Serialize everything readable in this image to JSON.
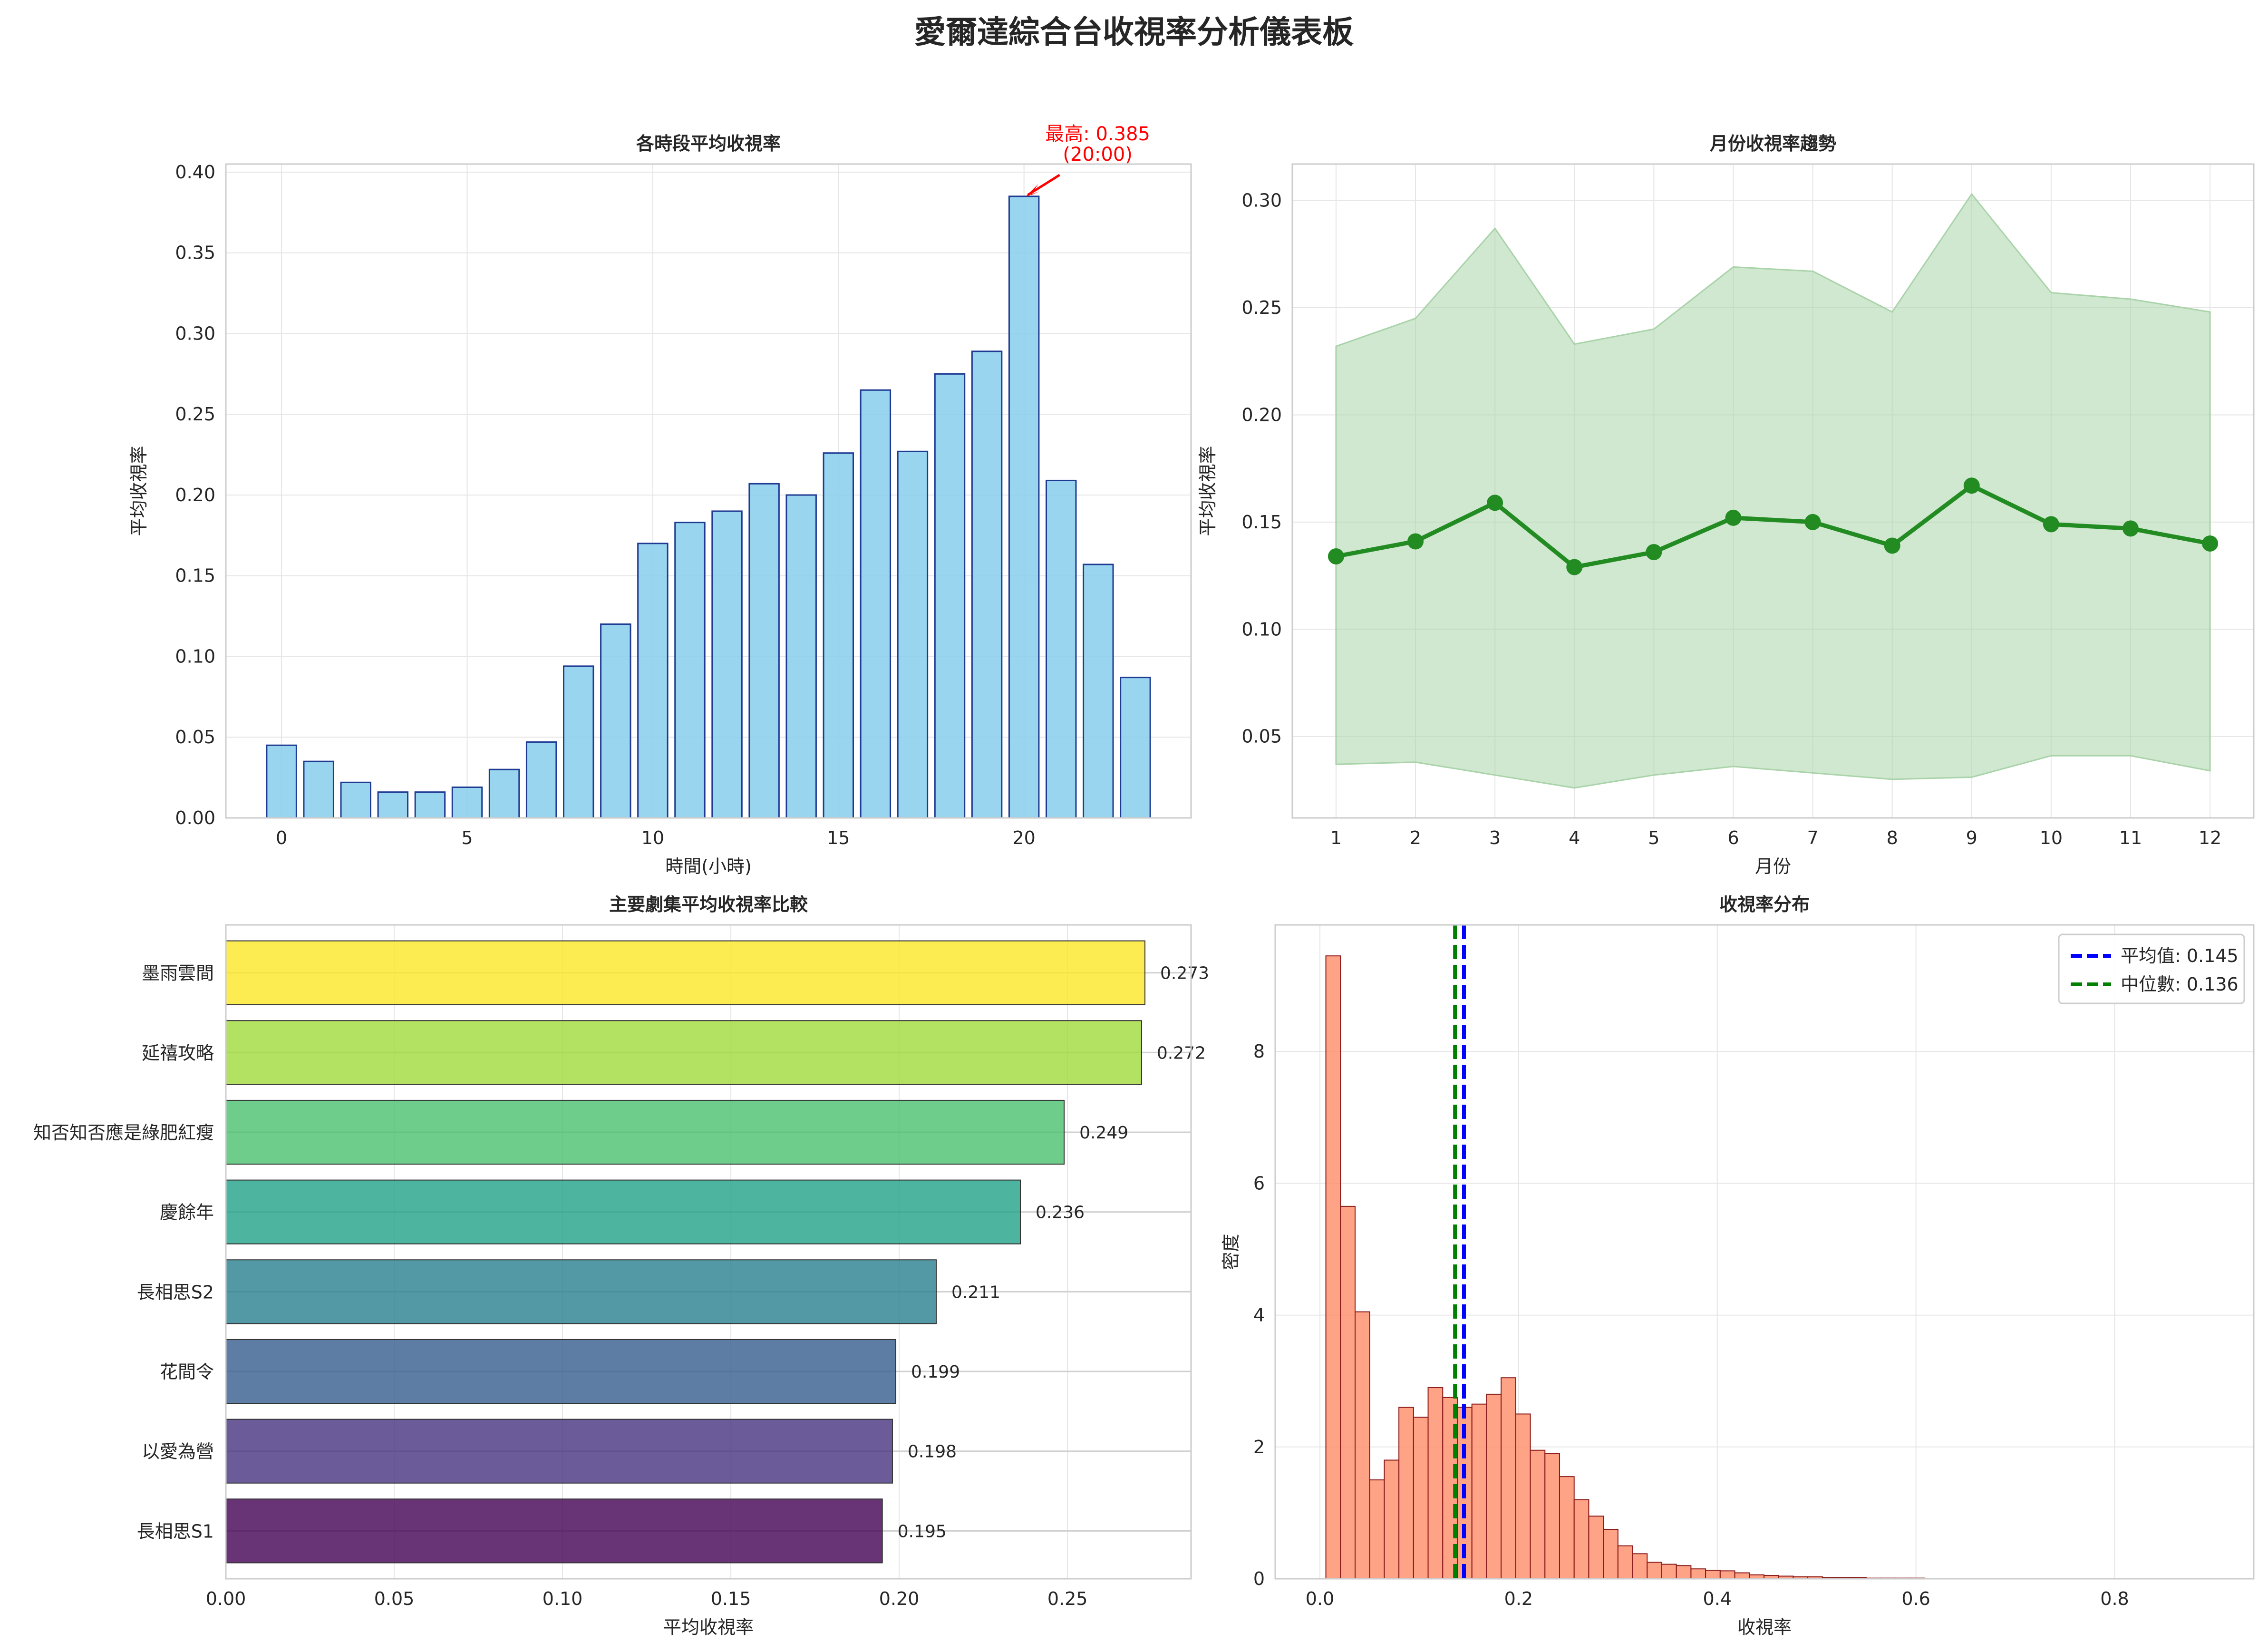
{
  "suptitle": "愛爾達綜合台收視率分析儀表板",
  "colors": {
    "bar_fill": "#87ceeb",
    "bar_edge": "#1f3a93",
    "line": "#228b22",
    "band": "#a9d3a9",
    "hist_fill": "#ff8c69",
    "hist_edge": "#8b1a1a",
    "mean_line": "#0000ff",
    "median_line": "#008000",
    "annotation": "#ff0000",
    "grid": "#e6e6e6",
    "frame": "#cccccc",
    "viridis": [
      "#fde725",
      "#a0da39",
      "#4ac16d",
      "#1fa187",
      "#277f8e",
      "#365c8d",
      "#46327e",
      "#440154"
    ]
  },
  "chart_data": [
    {
      "type": "bar",
      "title": "各時段平均收視率",
      "xlabel": "時間(小時)",
      "ylabel": "平均收視率",
      "x": [
        0,
        1,
        2,
        3,
        4,
        5,
        6,
        7,
        8,
        9,
        10,
        11,
        12,
        13,
        14,
        15,
        16,
        17,
        18,
        19,
        20,
        21,
        22,
        23
      ],
      "values": [
        0.045,
        0.035,
        0.022,
        0.016,
        0.016,
        0.019,
        0.03,
        0.047,
        0.094,
        0.12,
        0.17,
        0.183,
        0.19,
        0.207,
        0.2,
        0.226,
        0.265,
        0.227,
        0.275,
        0.289,
        0.385,
        0.209,
        0.157,
        0.087
      ],
      "xlim": [
        -1.5,
        24.5
      ],
      "ylim": [
        0,
        0.405
      ],
      "xticks": [
        0,
        5,
        10,
        15,
        20
      ],
      "yticks": [
        0.0,
        0.05,
        0.1,
        0.15,
        0.2,
        0.25,
        0.3,
        0.35,
        0.4
      ],
      "ytick_labels": [
        "0.00",
        "0.05",
        "0.10",
        "0.15",
        "0.20",
        "0.25",
        "0.30",
        "0.35",
        "0.40"
      ],
      "annotation": {
        "line1": "最高: 0.385",
        "line2": "(20:00)",
        "x": 20,
        "y": 0.385
      }
    },
    {
      "type": "line",
      "title": "月份收視率趨勢",
      "xlabel": "月份",
      "ylabel": "平均收視率",
      "x": [
        1,
        2,
        3,
        4,
        5,
        6,
        7,
        8,
        9,
        10,
        11,
        12
      ],
      "values": [
        0.134,
        0.141,
        0.159,
        0.129,
        0.136,
        0.152,
        0.15,
        0.139,
        0.167,
        0.149,
        0.147,
        0.14
      ],
      "band_upper": [
        0.232,
        0.245,
        0.287,
        0.233,
        0.24,
        0.269,
        0.267,
        0.248,
        0.303,
        0.257,
        0.254,
        0.248
      ],
      "band_lower": [
        0.037,
        0.038,
        0.032,
        0.026,
        0.032,
        0.036,
        0.033,
        0.03,
        0.031,
        0.041,
        0.041,
        0.034
      ],
      "xlim": [
        0.45,
        12.55
      ],
      "ylim": [
        0.012,
        0.317
      ],
      "xticks": [
        1,
        2,
        3,
        4,
        5,
        6,
        7,
        8,
        9,
        10,
        11,
        12
      ],
      "yticks": [
        0.05,
        0.1,
        0.15,
        0.2,
        0.25,
        0.3
      ],
      "ytick_labels": [
        "0.05",
        "0.10",
        "0.15",
        "0.20",
        "0.25",
        "0.30"
      ]
    },
    {
      "type": "bar",
      "orientation": "horizontal",
      "title": "主要劇集平均收視率比較",
      "xlabel": "平均收視率",
      "categories": [
        "墨雨雲間",
        "延禧攻略",
        "知否知否應是綠肥紅瘦",
        "慶餘年",
        "長相思S2",
        "花間令",
        "以愛為營",
        "長相思S1"
      ],
      "values": [
        0.273,
        0.272,
        0.249,
        0.236,
        0.211,
        0.199,
        0.198,
        0.195
      ],
      "value_labels": [
        "0.273",
        "0.272",
        "0.249",
        "0.236",
        "0.211",
        "0.199",
        "0.198",
        "0.195"
      ],
      "xlim": [
        0,
        0.2867
      ],
      "xticks": [
        0.0,
        0.05,
        0.1,
        0.15,
        0.2,
        0.25
      ],
      "xtick_labels": [
        "0.00",
        "0.05",
        "0.10",
        "0.15",
        "0.20",
        "0.25"
      ]
    },
    {
      "type": "histogram",
      "title": "收視率分布",
      "xlabel": "收視率",
      "ylabel": "密度",
      "bin_start": 0.006,
      "bin_width": 0.0147,
      "densities": [
        9.45,
        5.65,
        4.05,
        1.5,
        1.8,
        2.6,
        2.45,
        2.9,
        2.75,
        2.6,
        2.65,
        2.8,
        3.05,
        2.5,
        1.95,
        1.9,
        1.55,
        1.2,
        0.95,
        0.75,
        0.5,
        0.38,
        0.25,
        0.22,
        0.2,
        0.15,
        0.13,
        0.12,
        0.09,
        0.06,
        0.05,
        0.04,
        0.03,
        0.03,
        0.02,
        0.02,
        0.02,
        0.01,
        0.01,
        0.01,
        0.01,
        0.0,
        0.0,
        0.0,
        0.0,
        0.0,
        0.0,
        0.0,
        0.0,
        0.0,
        0.0,
        0.0,
        0.0,
        0.0,
        0.0,
        0.0,
        0.0,
        0.0,
        0.0,
        0.0
      ],
      "mean": 0.145,
      "median": 0.136,
      "xlim": [
        -0.045,
        0.94
      ],
      "ylim": [
        0,
        9.92
      ],
      "xticks": [
        0.0,
        0.2,
        0.4,
        0.6,
        0.8
      ],
      "xtick_labels": [
        "0.0",
        "0.2",
        "0.4",
        "0.6",
        "0.8"
      ],
      "yticks": [
        0,
        2,
        4,
        6,
        8
      ],
      "legend": {
        "position": "top-right",
        "mean_label": "平均值: 0.145",
        "median_label": "中位數: 0.136"
      }
    }
  ]
}
